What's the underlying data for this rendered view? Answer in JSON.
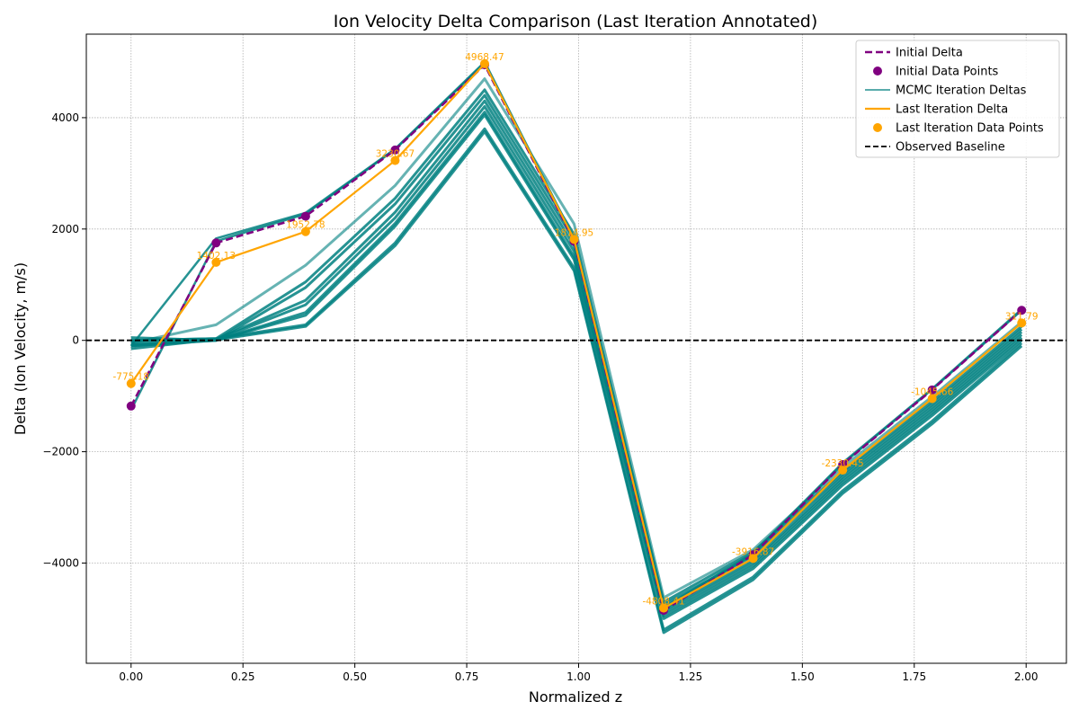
{
  "chart_data": {
    "type": "line",
    "title": "Ion Velocity Delta Comparison (Last Iteration Annotated)",
    "xlabel": "Normalized z",
    "ylabel": "Delta (Ion Velocity, m/s)",
    "xlim": [
      -0.1,
      2.09
    ],
    "ylim": [
      -5800,
      5500
    ],
    "xticks": [
      0.0,
      0.25,
      0.5,
      0.75,
      1.0,
      1.25,
      1.5,
      1.75,
      2.0
    ],
    "xtick_labels": [
      "0.00",
      "0.25",
      "0.50",
      "0.75",
      "1.00",
      "1.25",
      "1.50",
      "1.75",
      "2.00"
    ],
    "yticks": [
      -4000,
      -2000,
      0,
      2000,
      4000
    ],
    "ytick_labels": [
      "−4000",
      "−2000",
      "0",
      "2000",
      "4000"
    ],
    "grid": true,
    "legend_position": "top-right",
    "x": [
      0.0,
      0.19,
      0.39,
      0.59,
      0.79,
      0.99,
      1.19,
      1.39,
      1.59,
      1.79,
      1.99
    ],
    "baseline": {
      "name": "Observed Baseline",
      "y": 0,
      "color": "#000000"
    },
    "initial": {
      "name": "Initial Delta",
      "points_name": "Initial Data Points",
      "color": "#800080",
      "values": [
        -1180,
        1750,
        2230,
        3420,
        4950,
        1780,
        -4850,
        -3850,
        -2230,
        -890,
        540
      ]
    },
    "mcmc": {
      "name": "MCMC Iteration Deltas",
      "color": "#008080",
      "iterations": [
        [
          -100,
          1830,
          2290,
          3440,
          5000,
          1830,
          -4800,
          -3820,
          -2200,
          -870,
          560
        ],
        [
          -1250,
          1780,
          2270,
          3430,
          4980,
          1800,
          -4830,
          -3840,
          -2220,
          -880,
          540
        ],
        [
          -50,
          280,
          1350,
          2780,
          4700,
          2090,
          -4620,
          -3760,
          -2280,
          -1010,
          330
        ],
        [
          0,
          30,
          1050,
          2550,
          4500,
          1900,
          -4700,
          -3800,
          -2350,
          -1100,
          250
        ],
        [
          -100,
          0,
          950,
          2450,
          4400,
          1800,
          -4750,
          -3870,
          -2400,
          -1150,
          200
        ],
        [
          -150,
          20,
          720,
          2300,
          4300,
          1700,
          -4850,
          -3950,
          -2450,
          -1200,
          150
        ],
        [
          -100,
          10,
          640,
          2200,
          4200,
          1600,
          -4900,
          -4000,
          -2500,
          -1250,
          100
        ],
        [
          -80,
          0,
          500,
          2100,
          4100,
          1500,
          -4950,
          -4050,
          -2550,
          -1300,
          50
        ],
        [
          50,
          0,
          450,
          2050,
          4050,
          1450,
          -5000,
          -4100,
          -2600,
          -1350,
          0
        ],
        [
          0,
          30,
          280,
          1750,
          3800,
          1300,
          -5200,
          -4250,
          -2700,
          -1450,
          -50
        ],
        [
          -50,
          10,
          250,
          1700,
          3750,
          1250,
          -5250,
          -4300,
          -2750,
          -1500,
          -100
        ]
      ]
    },
    "last": {
      "name": "Last Iteration Delta",
      "points_name": "Last Iteration Data Points",
      "color": "#FFA500",
      "values": [
        -775.18,
        1402.13,
        1952.78,
        3230.67,
        4968.47,
        1814.95,
        -4808.41,
        -3916.87,
        -2330.45,
        -1045.66,
        311.79
      ],
      "labels": [
        "-775.18",
        "1402.13",
        "1952.78",
        "3230.67",
        "4968.47",
        "1814.95",
        "-4808.41",
        "-3916.87",
        "-2330.45",
        "-1045.66",
        "311.79"
      ]
    }
  }
}
